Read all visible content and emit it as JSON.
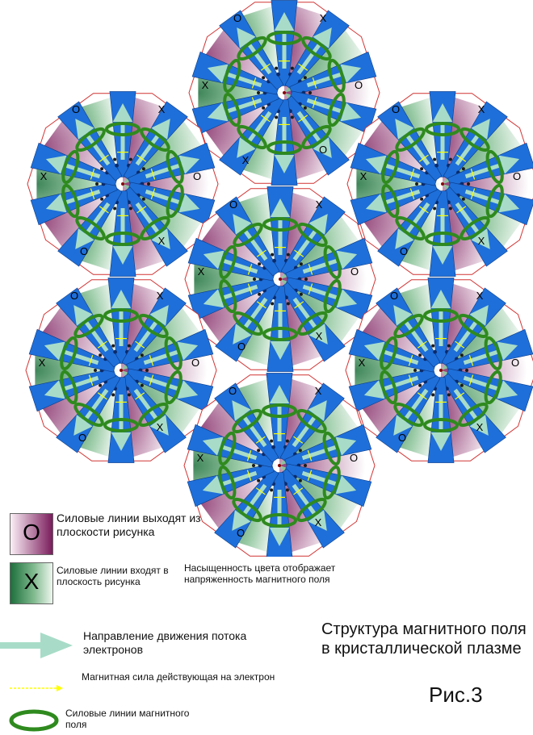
{
  "cells": [
    {
      "top_left": "O",
      "top_right": "X",
      "left": "X",
      "right": "O",
      "bottom_left": "X",
      "bottom_right": "O"
    },
    {
      "top_left": "O",
      "top_right": "X",
      "left": "X",
      "right": "O",
      "bottom_left": "O",
      "bottom_right": "X"
    },
    {
      "top_left": "O",
      "top_right": "X",
      "left": "X",
      "right": "O",
      "bottom_left": "O",
      "bottom_right": "X"
    },
    {
      "top_left": "O",
      "top_right": "X",
      "left": "X",
      "right": "O",
      "bottom_left": "O",
      "bottom_right": "X"
    },
    {
      "top_left": "O",
      "top_right": "X",
      "left": "X",
      "right": "O",
      "bottom_left": "O",
      "bottom_right": "X"
    },
    {
      "top_left": "O",
      "top_right": "X",
      "left": "X",
      "right": "O",
      "bottom_left": "O",
      "bottom_right": "X"
    },
    {
      "top_left": "O",
      "top_right": "X",
      "left": "X",
      "right": "O",
      "bottom_left": "O",
      "bottom_right": "X"
    }
  ],
  "legend": {
    "out_glyph": "O",
    "out_text": "Силовые линии выходят из плоскости рисунка",
    "in_glyph": "X",
    "in_text": "Силовые линии входят в плоскость рисунка",
    "saturation_text": "Насыщенность цвета отображает напряженность магнитного поля",
    "arrow_text": "Направление движения потока электронов",
    "force_text": "Магнитная сила действующая на электрон",
    "loop_text": "Силовые линии магнитного поля"
  },
  "title": "Структура магнитного поля в кристаллической плазме",
  "figure_label": "Рис.3",
  "colors": {
    "blue": "#1e6fd9",
    "arrow": "#a8dcc8",
    "ring": "#2f8a1e",
    "magenta": "#7a1c5c",
    "green": "#1d6f3c",
    "edge": "#d23232",
    "force": "#ffff00"
  }
}
